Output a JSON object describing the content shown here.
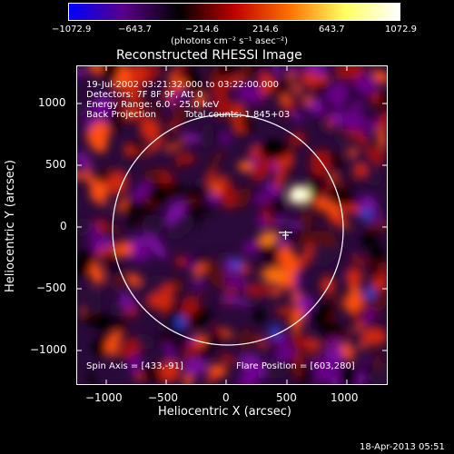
{
  "colorbar": {
    "tick_labels": [
      "−1072.9",
      "−643.7",
      "−214.6",
      "214.6",
      "643.7",
      "1072.9"
    ],
    "unit_label": "(photons cm⁻² s⁻¹ asec⁻²)",
    "colors": [
      "#0000ff",
      "#5a0088",
      "#000000",
      "#c00000",
      "#ff7000",
      "#ffff60",
      "#ffffff"
    ]
  },
  "title": "Reconstructed RHESSI Image",
  "annotations": {
    "time_range": "19-Jul-2002 03:21:32.000 to 03:22:00.000",
    "detectors": "Detectors: 7F 8F 9F, Att 0",
    "energy": "Energy Range: 6.0 - 25.0 keV",
    "method": "Back Projection",
    "counts": "Total counts: 1.845+03",
    "spin_axis": "Spin Axis = [433,-91]",
    "flare_position": "Flare Position = [603,280]"
  },
  "axes": {
    "xlabel": "Heliocentric X (arcsec)",
    "ylabel": "Heliocentric Y (arcsec)",
    "x_ticks": [
      "−1000",
      "−500",
      "0",
      "500",
      "1000"
    ],
    "y_ticks": [
      "1000",
      "500",
      "0",
      "−500",
      "−1000"
    ],
    "xlim": [
      -1300,
      1300
    ],
    "ylim": [
      -1300,
      1300
    ]
  },
  "footer": {
    "timestamp": "18-Apr-2013 05:51"
  }
}
